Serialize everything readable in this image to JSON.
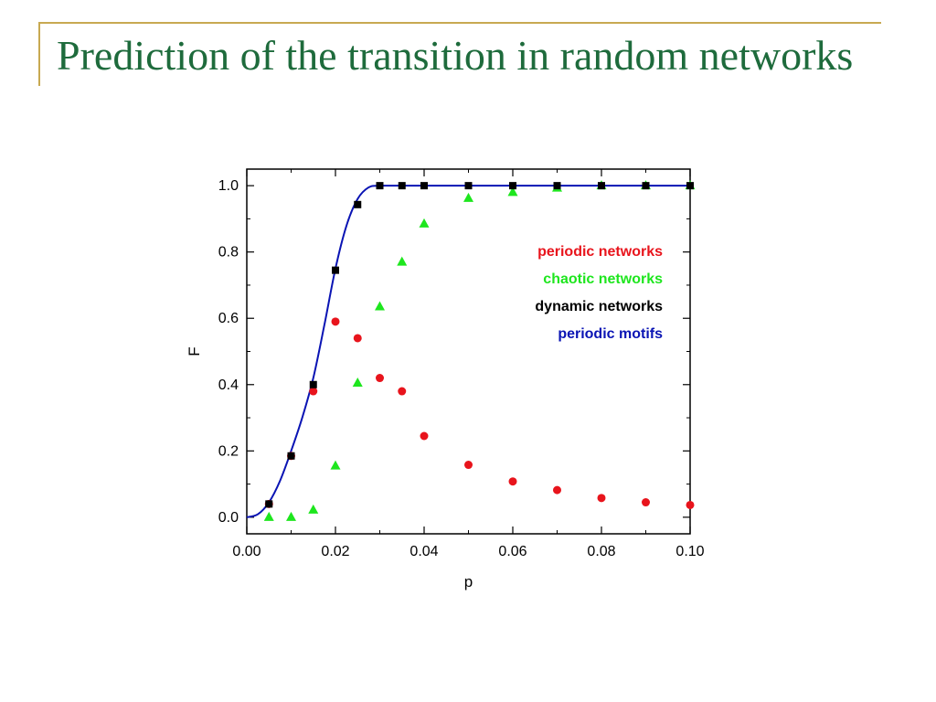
{
  "slide": {
    "title": "Prediction of the transition in random networks",
    "accent_color": "#c8a951",
    "title_color": "#1e6b3c"
  },
  "chart_data": {
    "type": "scatter",
    "xlabel": "p",
    "ylabel": "F",
    "xlim": [
      0.0,
      0.1
    ],
    "ylim": [
      -0.05,
      1.05
    ],
    "x_ticks": [
      "0.00",
      "0.02",
      "0.04",
      "0.06",
      "0.08",
      "0.10"
    ],
    "y_ticks": [
      "0.0",
      "0.2",
      "0.4",
      "0.6",
      "0.8",
      "1.0"
    ],
    "grid": false,
    "legend_position": "top-right",
    "series": [
      {
        "name": "periodic networks",
        "marker": "circle",
        "color": "#e8141c",
        "points": [
          [
            0.005,
            0.04
          ],
          [
            0.01,
            0.185
          ],
          [
            0.015,
            0.38
          ],
          [
            0.02,
            0.59
          ],
          [
            0.025,
            0.54
          ],
          [
            0.03,
            0.42
          ],
          [
            0.035,
            0.38
          ],
          [
            0.04,
            0.245
          ],
          [
            0.05,
            0.158
          ],
          [
            0.06,
            0.108
          ],
          [
            0.07,
            0.082
          ],
          [
            0.08,
            0.058
          ],
          [
            0.09,
            0.045
          ],
          [
            0.1,
            0.037
          ]
        ]
      },
      {
        "name": "chaotic networks",
        "marker": "triangle",
        "color": "#1ee61e",
        "points": [
          [
            0.005,
            0.0
          ],
          [
            0.01,
            0.0
          ],
          [
            0.015,
            0.022
          ],
          [
            0.02,
            0.155
          ],
          [
            0.025,
            0.405
          ],
          [
            0.03,
            0.635
          ],
          [
            0.035,
            0.77
          ],
          [
            0.04,
            0.885
          ],
          [
            0.05,
            0.962
          ],
          [
            0.06,
            0.98
          ],
          [
            0.07,
            0.993
          ],
          [
            0.08,
            1.0
          ],
          [
            0.09,
            1.0
          ],
          [
            0.1,
            1.0
          ]
        ]
      },
      {
        "name": "dynamic networks",
        "marker": "square",
        "color": "#000000",
        "points": [
          [
            0.005,
            0.04
          ],
          [
            0.01,
            0.185
          ],
          [
            0.015,
            0.4
          ],
          [
            0.02,
            0.745
          ],
          [
            0.025,
            0.943
          ],
          [
            0.03,
            1.0
          ],
          [
            0.035,
            1.0
          ],
          [
            0.04,
            1.0
          ],
          [
            0.05,
            1.0
          ],
          [
            0.06,
            1.0
          ],
          [
            0.07,
            1.0
          ],
          [
            0.08,
            1.0
          ],
          [
            0.09,
            1.0
          ],
          [
            0.1,
            1.0
          ]
        ]
      },
      {
        "name": "periodic motifs",
        "marker": "line",
        "color": "#0a14b4",
        "points": [
          [
            0.0,
            0.0
          ],
          [
            0.0025,
            0.009
          ],
          [
            0.005,
            0.045
          ],
          [
            0.0075,
            0.11
          ],
          [
            0.01,
            0.2
          ],
          [
            0.0125,
            0.3
          ],
          [
            0.015,
            0.42
          ],
          [
            0.0175,
            0.58
          ],
          [
            0.02,
            0.75
          ],
          [
            0.0225,
            0.88
          ],
          [
            0.025,
            0.96
          ],
          [
            0.0275,
            0.995
          ],
          [
            0.03,
            1.0
          ],
          [
            0.04,
            1.0
          ],
          [
            0.06,
            1.0
          ],
          [
            0.08,
            1.0
          ],
          [
            0.1,
            1.0
          ]
        ]
      }
    ]
  }
}
